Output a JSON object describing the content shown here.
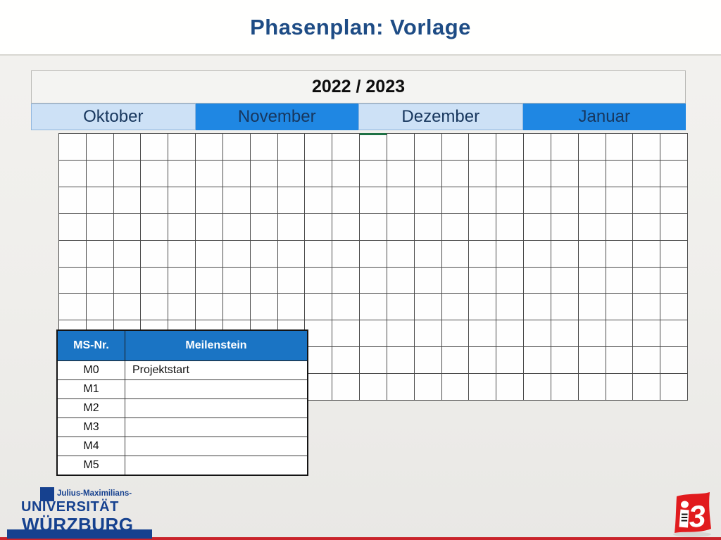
{
  "slide": {
    "title": "Phasenplan: Vorlage"
  },
  "calendar": {
    "year_header": "2022 / 2023",
    "months": [
      {
        "label": "Oktober",
        "variant": "light"
      },
      {
        "label": "November",
        "variant": "dark"
      },
      {
        "label": "Dezember",
        "variant": "light"
      },
      {
        "label": "Januar",
        "variant": "dark"
      }
    ],
    "grid": {
      "rows": 10,
      "cols": 23,
      "selected_cell": {
        "row": 0,
        "col": 11
      }
    }
  },
  "milestones": {
    "headers": [
      "MS-Nr.",
      "Meilenstein"
    ],
    "rows": [
      {
        "nr": "M0",
        "name": "Projektstart"
      },
      {
        "nr": "M1",
        "name": ""
      },
      {
        "nr": "M2",
        "name": ""
      },
      {
        "nr": "M3",
        "name": ""
      },
      {
        "nr": "M4",
        "name": ""
      },
      {
        "nr": "M5",
        "name": ""
      }
    ]
  },
  "footer": {
    "university": {
      "pretitle": "Julius-Maximilians-",
      "line1": "UNIVERSITÄT",
      "line2": "WÜRZBURG"
    },
    "i3_logo_text": "3"
  },
  "colors": {
    "title_blue": "#1e4c85",
    "month_light_bg": "#cde1f6",
    "month_dark_bg": "#1f87e3",
    "month_text": "#17365d",
    "table_header_blue": "#1a74c4",
    "grid_line": "#4b4b4b",
    "jmu_blue": "#16418f",
    "logo_red": "#e11b1e",
    "footer_bar_red": "#c9242b",
    "selected_cell_green": "#1e7145"
  }
}
